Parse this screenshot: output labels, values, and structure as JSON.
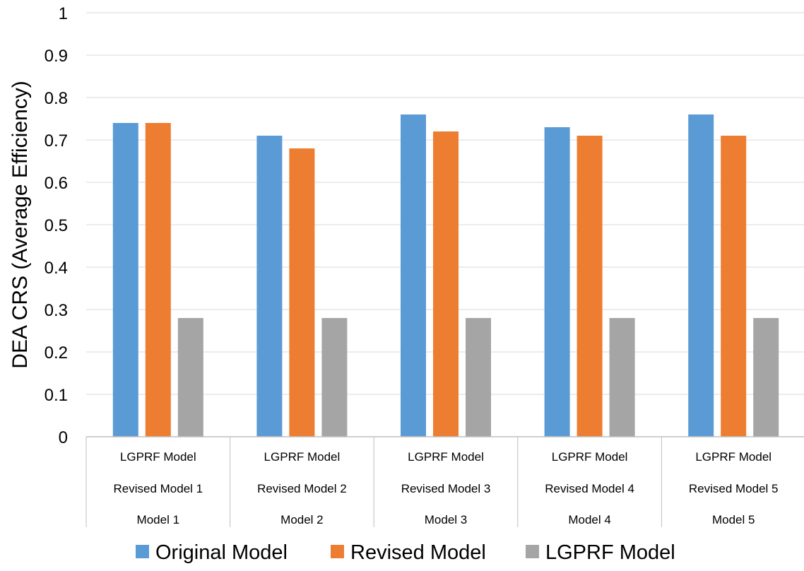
{
  "chart_data": {
    "type": "bar",
    "title": "",
    "xlabel": "",
    "ylabel": "DEA CRS (Average Efficiency)",
    "ylim": [
      0,
      1
    ],
    "yticks": [
      "0",
      "0.1",
      "0.2",
      "0.3",
      "0.4",
      "0.5",
      "0.6",
      "0.7",
      "0.8",
      "0.9",
      "1"
    ],
    "grid": true,
    "legend_position": "bottom",
    "categories": [
      [
        "LGPRF Model",
        "Revised Model 1",
        "Model 1"
      ],
      [
        "LGPRF Model",
        "Revised Model 2",
        "Model 2"
      ],
      [
        "LGPRF Model",
        "Revised Model 3",
        "Model 3"
      ],
      [
        "LGPRF Model",
        "Revised Model 4",
        "Model 4"
      ],
      [
        "LGPRF Model",
        "Revised Model 5",
        "Model 5"
      ]
    ],
    "series": [
      {
        "name": "Original Model",
        "color": "#5B9BD5",
        "values": [
          0.74,
          0.71,
          0.76,
          0.73,
          0.76
        ]
      },
      {
        "name": "Revised Model",
        "color": "#ED7D31",
        "values": [
          0.74,
          0.68,
          0.72,
          0.71,
          0.71
        ]
      },
      {
        "name": "LGPRF Model",
        "color": "#A5A5A5",
        "values": [
          0.28,
          0.28,
          0.28,
          0.28,
          0.28
        ]
      }
    ],
    "colors": {
      "grid": "#D9D9D9",
      "axis": "#BFBFBF",
      "text": "#000000"
    }
  }
}
